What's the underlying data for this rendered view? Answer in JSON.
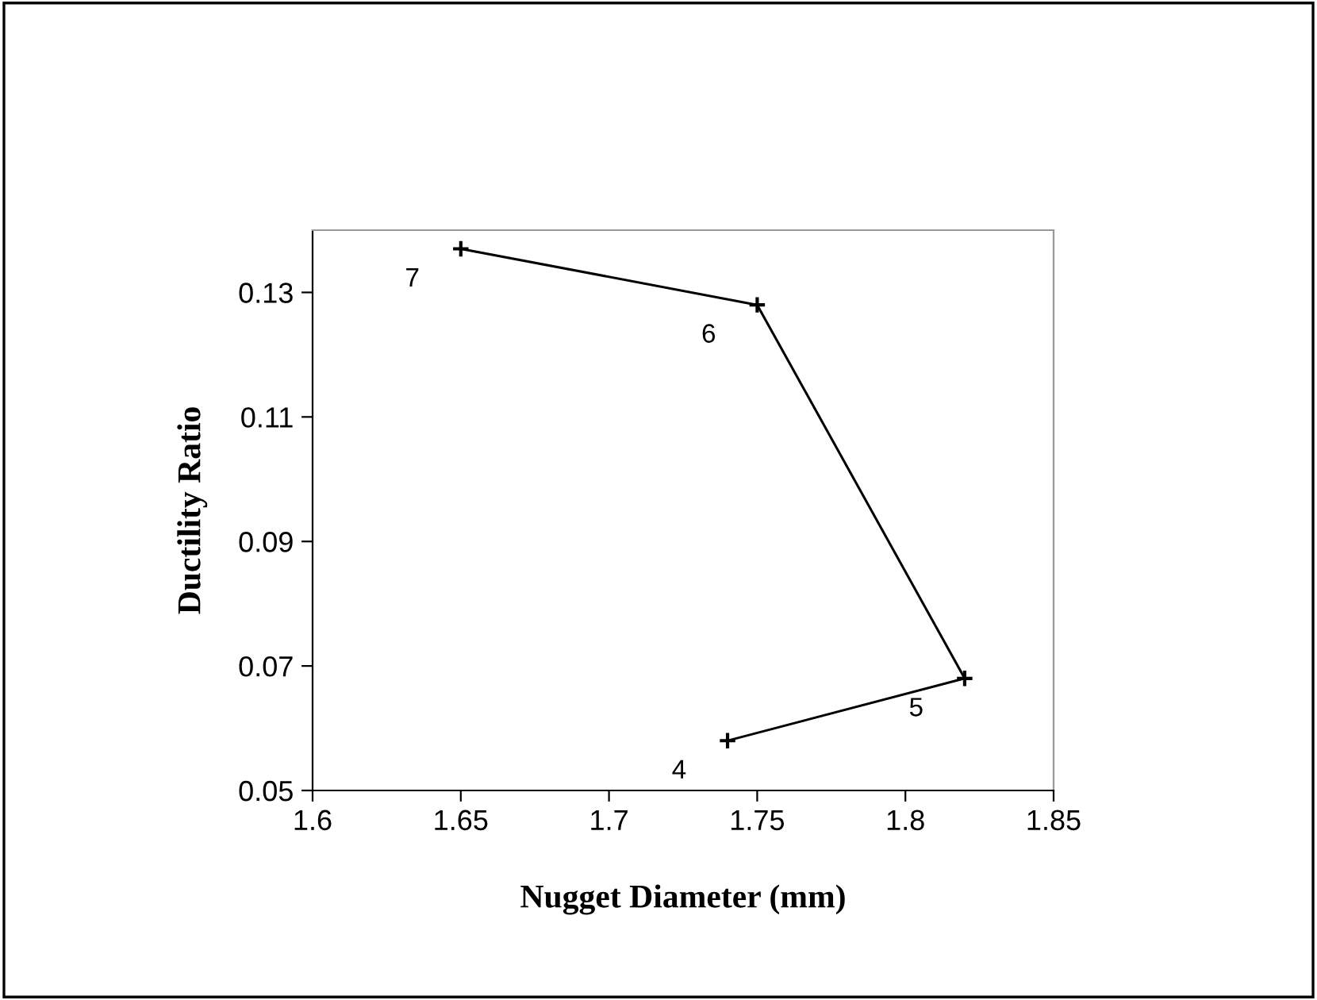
{
  "chart_data": {
    "type": "line",
    "xlabel": "Nugget Diameter (mm)",
    "ylabel": "Ductility Ratio",
    "series": [
      {
        "color": "#000000",
        "x": [
          1.65,
          1.75,
          1.82,
          1.74
        ],
        "values": [
          0.137,
          0.128,
          0.068,
          0.058
        ]
      }
    ],
    "annotations": [
      {
        "text": "7",
        "x": 1.65,
        "y": 0.137
      },
      {
        "text": "6",
        "x": 1.75,
        "y": 0.128
      },
      {
        "text": "5",
        "x": 1.82,
        "y": 0.068
      },
      {
        "text": "4",
        "x": 1.74,
        "y": 0.058
      }
    ],
    "xlim": [
      1.6,
      1.85
    ],
    "xticks": [
      {
        "value": 1.6,
        "label": "1.6"
      },
      1.65,
      {
        "value": 1.7,
        "label": "1.7"
      },
      1.75,
      {
        "value": 1.8,
        "label": "1.8"
      },
      1.85
    ],
    "ylim": [
      0.05,
      0.14
    ],
    "yticks": [
      0.05,
      0.07,
      0.09,
      0.11,
      0.13
    ],
    "grid": false,
    "legend": false,
    "marker": "cross",
    "line_style": "solid"
  }
}
